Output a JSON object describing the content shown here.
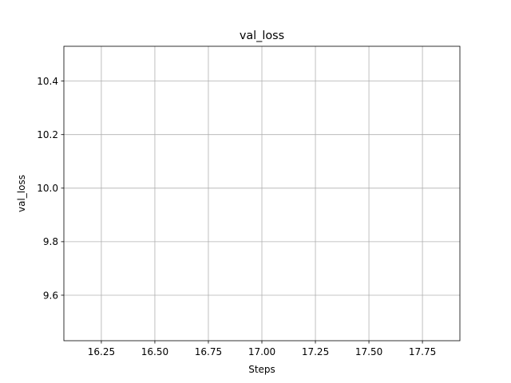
{
  "chart_data": {
    "type": "line",
    "title": "val_loss",
    "xlabel": "Steps",
    "ylabel": "val_loss",
    "xlim": [
      16.075,
      17.925
    ],
    "ylim": [
      9.43,
      10.53
    ],
    "x_ticks": [
      16.25,
      16.5,
      16.75,
      17.0,
      17.25,
      17.5,
      17.75
    ],
    "x_tick_labels": [
      "16.25",
      "16.50",
      "16.75",
      "17.00",
      "17.25",
      "17.50",
      "17.75"
    ],
    "y_ticks": [
      9.6,
      9.8,
      10.0,
      10.2,
      10.4
    ],
    "y_tick_labels": [
      "9.6",
      "9.8",
      "10.0",
      "10.2",
      "10.4"
    ],
    "grid": true,
    "series": []
  }
}
